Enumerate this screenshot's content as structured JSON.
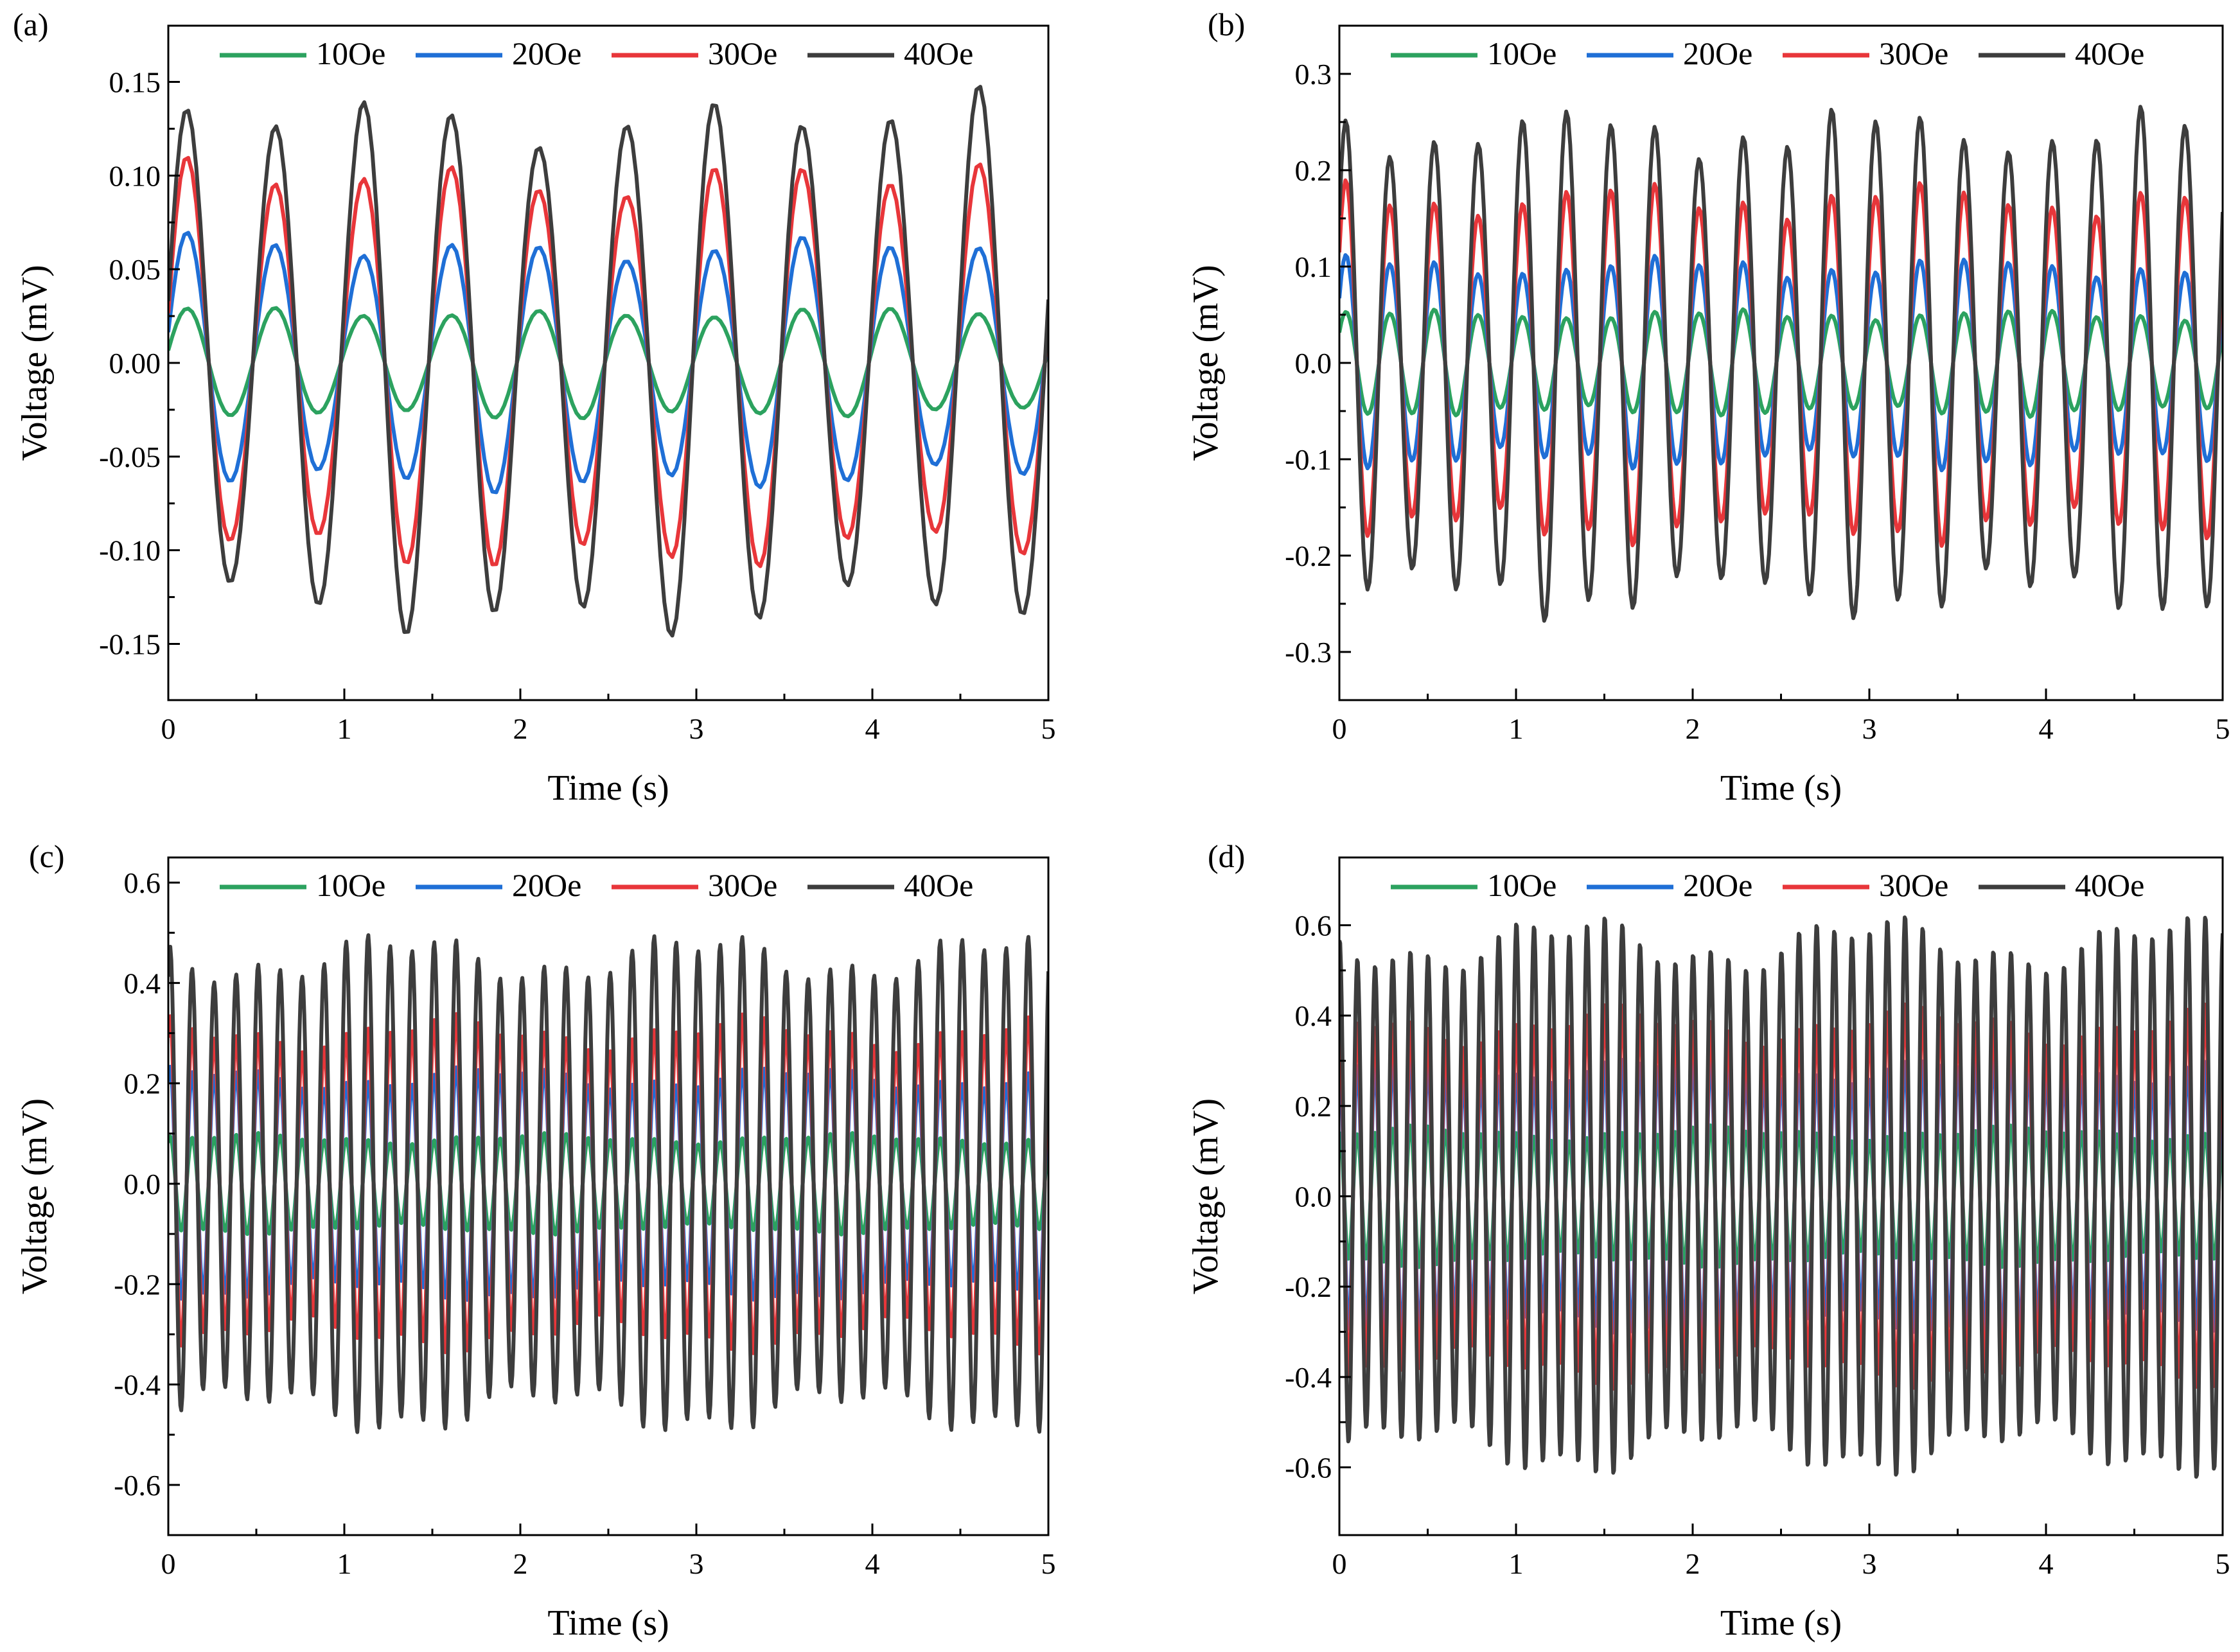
{
  "chart_data": [
    {
      "type": "line",
      "panel": "(a)",
      "xlabel": "Time (s)",
      "ylabel": "Voltage (mV)",
      "xlim": [
        0,
        5
      ],
      "ylim": [
        -0.18,
        0.18
      ],
      "xticks": [
        0,
        1,
        2,
        3,
        4,
        5
      ],
      "xtick_labels": [
        "0",
        "1",
        "2",
        "3",
        "4",
        "5"
      ],
      "yticks": [
        -0.15,
        -0.1,
        -0.05,
        0.0,
        0.05,
        0.1,
        0.15
      ],
      "ytick_labels": [
        "-0.15",
        "-0.10",
        "-0.05",
        "0.00",
        "0.05",
        "0.10",
        "0.15"
      ],
      "legend": "top",
      "frequency_hz": 2,
      "series": [
        {
          "name": "10Oe",
          "color": "#2ca25f",
          "amplitude": 0.027
        },
        {
          "name": "20Oe",
          "color": "#1f6fd6",
          "amplitude": 0.062
        },
        {
          "name": "30Oe",
          "color": "#e8363a",
          "amplitude": 0.1
        },
        {
          "name": "40Oe",
          "color": "#3d3d3d",
          "amplitude": 0.132
        }
      ]
    },
    {
      "type": "line",
      "panel": "(b)",
      "xlabel": "Time (s)",
      "ylabel": "Voltage (mV)",
      "xlim": [
        0,
        5
      ],
      "ylim": [
        -0.35,
        0.35
      ],
      "xticks": [
        0,
        1,
        2,
        3,
        4,
        5
      ],
      "xtick_labels": [
        "0",
        "1",
        "2",
        "3",
        "4",
        "5"
      ],
      "yticks": [
        -0.3,
        -0.2,
        -0.1,
        0.0,
        0.1,
        0.2,
        0.3
      ],
      "ytick_labels": [
        "-0.3",
        "-0.2",
        "-0.1",
        "0.0",
        "0.1",
        "0.2",
        "0.3"
      ],
      "legend": "top",
      "frequency_hz": 4,
      "series": [
        {
          "name": "10Oe",
          "color": "#2ca25f",
          "amplitude": 0.05
        },
        {
          "name": "20Oe",
          "color": "#1f6fd6",
          "amplitude": 0.1
        },
        {
          "name": "30Oe",
          "color": "#e8363a",
          "amplitude": 0.17
        },
        {
          "name": "40Oe",
          "color": "#3d3d3d",
          "amplitude": 0.24
        }
      ]
    },
    {
      "type": "line",
      "panel": "(c)",
      "xlabel": "Time (s)",
      "ylabel": "Voltage (mV)",
      "xlim": [
        0,
        5
      ],
      "ylim": [
        -0.7,
        0.65
      ],
      "xticks": [
        0,
        1,
        2,
        3,
        4,
        5
      ],
      "xtick_labels": [
        "0",
        "1",
        "2",
        "3",
        "4",
        "5"
      ],
      "yticks": [
        -0.6,
        -0.4,
        -0.2,
        0.0,
        0.2,
        0.4,
        0.6
      ],
      "ytick_labels": [
        "-0.6",
        "-0.4",
        "-0.2",
        "0.0",
        "0.2",
        "0.4",
        "0.6"
      ],
      "legend": "top",
      "frequency_hz": 8,
      "series": [
        {
          "name": "10Oe",
          "color": "#2ca25f",
          "amplitude": 0.09
        },
        {
          "name": "20Oe",
          "color": "#1f6fd6",
          "amplitude": 0.21
        },
        {
          "name": "30Oe",
          "color": "#e8363a",
          "amplitude": 0.3
        },
        {
          "name": "40Oe",
          "color": "#3d3d3d",
          "amplitude": 0.45
        }
      ]
    },
    {
      "type": "line",
      "panel": "(d)",
      "xlabel": "Time (s)",
      "ylabel": "Voltage (mV)",
      "xlim": [
        0,
        5
      ],
      "ylim": [
        -0.75,
        0.75
      ],
      "xticks": [
        0,
        1,
        2,
        3,
        4,
        5
      ],
      "xtick_labels": [
        "0",
        "1",
        "2",
        "3",
        "4",
        "5"
      ],
      "yticks": [
        -0.6,
        -0.4,
        -0.2,
        0.0,
        0.2,
        0.4,
        0.6
      ],
      "ytick_labels": [
        "-0.6",
        "-0.4",
        "-0.2",
        "0.0",
        "0.2",
        "0.4",
        "0.6"
      ],
      "legend": "top",
      "frequency_hz": 10,
      "series": [
        {
          "name": "10Oe",
          "color": "#2ca25f",
          "amplitude": 0.14
        },
        {
          "name": "20Oe",
          "color": "#1f6fd6",
          "amplitude": 0.28
        },
        {
          "name": "30Oe",
          "color": "#e8363a",
          "amplitude": 0.38
        },
        {
          "name": "40Oe",
          "color": "#3d3d3d",
          "amplitude": 0.56
        }
      ]
    }
  ]
}
